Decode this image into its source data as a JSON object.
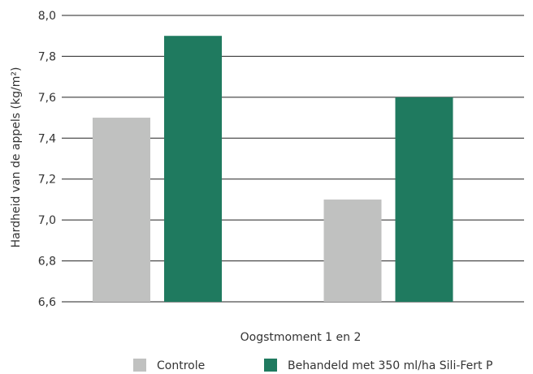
{
  "chart_data": {
    "type": "bar",
    "title": "",
    "xlabel": "Oogstmoment 1 en 2",
    "ylabel": "Hardheid van de appels (kg/m²)",
    "ylim": [
      6.6,
      8.0
    ],
    "yticks": [
      "6,6",
      "6,8",
      "7,0",
      "7,2",
      "7,4",
      "7,6",
      "7,8",
      "8,0"
    ],
    "categories": [
      "",
      ""
    ],
    "series": [
      {
        "name": "Controle",
        "values": [
          7.5,
          7.1
        ],
        "color": "#c0c1c0"
      },
      {
        "name": "Behandeld met 350 ml/ha Sili-Fert P",
        "values": [
          7.9,
          7.6
        ],
        "color": "#1f7a5f"
      }
    ],
    "grid": true,
    "legend_position": "bottom"
  }
}
